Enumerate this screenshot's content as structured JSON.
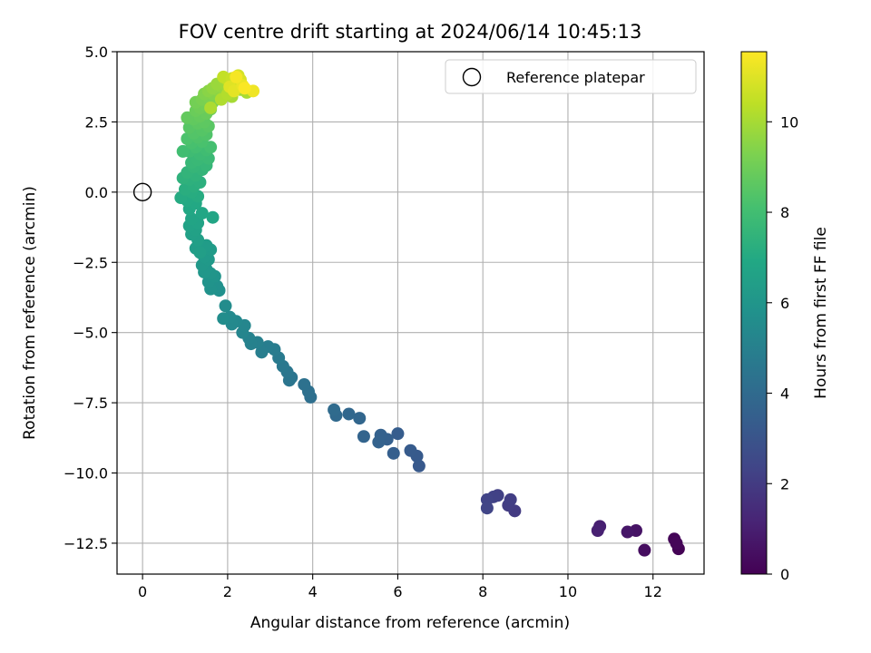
{
  "chart_data": {
    "type": "scatter",
    "title": "FOV centre drift starting at 2024/06/14 10:45:13",
    "xlabel": "Angular distance from reference (arcmin)",
    "ylabel": "Rotation from reference (arcmin)",
    "xlim": [
      -0.6,
      13.2
    ],
    "ylim": [
      -13.6,
      5.0
    ],
    "xticks": [
      0,
      2,
      4,
      6,
      8,
      10,
      12
    ],
    "yticks": [
      5.0,
      2.5,
      0.0,
      -2.5,
      -5.0,
      -7.5,
      -10.0,
      -12.5
    ],
    "xtick_labels": [
      "0",
      "2",
      "4",
      "6",
      "8",
      "10",
      "12"
    ],
    "ytick_labels": [
      "5.0",
      "2.5",
      "0.0",
      "−2.5",
      "−5.0",
      "−7.5",
      "−10.0",
      "−12.5"
    ],
    "grid": true,
    "legend": {
      "position": "top-right",
      "entries": [
        "Reference platepar"
      ]
    },
    "reference_point": {
      "x": 0,
      "y": 0
    },
    "colorbar": {
      "label": "Hours from first FF file",
      "colormap": "viridis",
      "range": [
        0,
        11.55
      ],
      "ticks": [
        0,
        2,
        4,
        6,
        8,
        10
      ],
      "tick_labels": [
        "0",
        "2",
        "4",
        "6",
        "8",
        "10"
      ]
    },
    "series": [
      {
        "points": [
          {
            "x": 12.6,
            "y": -12.7,
            "t": 0.05
          },
          {
            "x": 12.5,
            "y": -12.35,
            "t": 0.1
          },
          {
            "x": 12.55,
            "y": -12.5,
            "t": 0.15
          },
          {
            "x": 11.8,
            "y": -12.75,
            "t": 0.4
          },
          {
            "x": 11.6,
            "y": -12.05,
            "t": 0.6
          },
          {
            "x": 11.4,
            "y": -12.1,
            "t": 0.7
          },
          {
            "x": 10.75,
            "y": -11.9,
            "t": 1.0
          },
          {
            "x": 10.7,
            "y": -12.05,
            "t": 1.05
          },
          {
            "x": 8.75,
            "y": -11.35,
            "t": 2.0
          },
          {
            "x": 8.6,
            "y": -11.15,
            "t": 2.05
          },
          {
            "x": 8.65,
            "y": -10.95,
            "t": 2.1
          },
          {
            "x": 8.35,
            "y": -10.8,
            "t": 2.2
          },
          {
            "x": 8.25,
            "y": -10.85,
            "t": 2.25
          },
          {
            "x": 8.1,
            "y": -10.95,
            "t": 2.3
          },
          {
            "x": 8.1,
            "y": -11.25,
            "t": 2.35
          },
          {
            "x": 6.5,
            "y": -9.75,
            "t": 3.2
          },
          {
            "x": 6.45,
            "y": -9.4,
            "t": 3.25
          },
          {
            "x": 6.3,
            "y": -9.2,
            "t": 3.3
          },
          {
            "x": 6.0,
            "y": -8.6,
            "t": 3.4
          },
          {
            "x": 5.9,
            "y": -9.3,
            "t": 3.45
          },
          {
            "x": 5.75,
            "y": -8.8,
            "t": 3.5
          },
          {
            "x": 5.6,
            "y": -8.65,
            "t": 3.55
          },
          {
            "x": 5.55,
            "y": -8.9,
            "t": 3.6
          },
          {
            "x": 5.2,
            "y": -8.7,
            "t": 3.7
          },
          {
            "x": 5.1,
            "y": -8.05,
            "t": 3.8
          },
          {
            "x": 4.85,
            "y": -7.9,
            "t": 3.85
          },
          {
            "x": 4.55,
            "y": -7.95,
            "t": 3.95
          },
          {
            "x": 4.5,
            "y": -7.75,
            "t": 4.0
          },
          {
            "x": 3.95,
            "y": -7.3,
            "t": 4.2
          },
          {
            "x": 3.9,
            "y": -7.1,
            "t": 4.25
          },
          {
            "x": 3.8,
            "y": -6.85,
            "t": 4.3
          },
          {
            "x": 3.5,
            "y": -6.6,
            "t": 4.45
          },
          {
            "x": 3.45,
            "y": -6.7,
            "t": 4.5
          },
          {
            "x": 3.4,
            "y": -6.4,
            "t": 4.55
          },
          {
            "x": 3.3,
            "y": -6.2,
            "t": 4.6
          },
          {
            "x": 3.2,
            "y": -5.9,
            "t": 4.7
          },
          {
            "x": 3.1,
            "y": -5.6,
            "t": 4.8
          },
          {
            "x": 2.95,
            "y": -5.5,
            "t": 4.85
          },
          {
            "x": 2.8,
            "y": -5.7,
            "t": 4.9
          },
          {
            "x": 2.7,
            "y": -5.35,
            "t": 5.0
          },
          {
            "x": 2.55,
            "y": -5.4,
            "t": 5.05
          },
          {
            "x": 2.5,
            "y": -5.2,
            "t": 5.1
          },
          {
            "x": 2.35,
            "y": -5.0,
            "t": 5.2
          },
          {
            "x": 2.4,
            "y": -4.75,
            "t": 5.25
          },
          {
            "x": 2.2,
            "y": -4.6,
            "t": 5.35
          },
          {
            "x": 2.1,
            "y": -4.7,
            "t": 5.4
          },
          {
            "x": 2.05,
            "y": -4.45,
            "t": 5.45
          },
          {
            "x": 1.95,
            "y": -4.05,
            "t": 5.55
          },
          {
            "x": 1.9,
            "y": -4.5,
            "t": 5.6
          },
          {
            "x": 1.8,
            "y": -3.5,
            "t": 5.75
          },
          {
            "x": 1.75,
            "y": -3.35,
            "t": 5.8
          },
          {
            "x": 1.6,
            "y": -3.45,
            "t": 5.85
          },
          {
            "x": 1.55,
            "y": -3.2,
            "t": 5.9
          },
          {
            "x": 1.7,
            "y": -3.0,
            "t": 5.95
          },
          {
            "x": 1.6,
            "y": -2.9,
            "t": 6.0
          },
          {
            "x": 1.5,
            "y": -2.75,
            "t": 6.05
          },
          {
            "x": 1.45,
            "y": -2.85,
            "t": 6.1
          },
          {
            "x": 1.4,
            "y": -2.6,
            "t": 6.15
          },
          {
            "x": 1.55,
            "y": -2.4,
            "t": 6.2
          },
          {
            "x": 1.45,
            "y": -2.3,
            "t": 6.25
          },
          {
            "x": 1.6,
            "y": -2.05,
            "t": 6.3
          },
          {
            "x": 1.5,
            "y": -1.9,
            "t": 6.35
          },
          {
            "x": 1.25,
            "y": -2.0,
            "t": 6.4
          },
          {
            "x": 1.35,
            "y": -2.15,
            "t": 6.45
          },
          {
            "x": 1.3,
            "y": -1.7,
            "t": 6.5
          },
          {
            "x": 1.15,
            "y": -1.5,
            "t": 6.55
          },
          {
            "x": 1.25,
            "y": -1.35,
            "t": 6.6
          },
          {
            "x": 1.1,
            "y": -1.2,
            "t": 6.65
          },
          {
            "x": 1.3,
            "y": -1.1,
            "t": 6.7
          },
          {
            "x": 1.15,
            "y": -0.95,
            "t": 6.75
          },
          {
            "x": 1.65,
            "y": -0.9,
            "t": 6.8
          },
          {
            "x": 1.4,
            "y": -0.75,
            "t": 6.85
          },
          {
            "x": 1.1,
            "y": -0.6,
            "t": 6.9
          },
          {
            "x": 1.25,
            "y": -0.4,
            "t": 6.95
          },
          {
            "x": 1.05,
            "y": -0.3,
            "t": 7.0
          },
          {
            "x": 0.9,
            "y": -0.2,
            "t": 7.05
          },
          {
            "x": 1.3,
            "y": -0.15,
            "t": 7.1
          },
          {
            "x": 1.15,
            "y": 0.0,
            "t": 7.15
          },
          {
            "x": 1.0,
            "y": 0.1,
            "t": 7.2
          },
          {
            "x": 1.2,
            "y": 0.2,
            "t": 7.25
          },
          {
            "x": 1.35,
            "y": 0.35,
            "t": 7.3
          },
          {
            "x": 1.1,
            "y": 0.45,
            "t": 7.35
          },
          {
            "x": 0.95,
            "y": 0.5,
            "t": 7.4
          },
          {
            "x": 1.25,
            "y": 0.6,
            "t": 7.45
          },
          {
            "x": 1.05,
            "y": 0.7,
            "t": 7.5
          },
          {
            "x": 1.4,
            "y": 0.8,
            "t": 7.55
          },
          {
            "x": 1.2,
            "y": 0.9,
            "t": 7.6
          },
          {
            "x": 1.5,
            "y": 0.95,
            "t": 7.65
          },
          {
            "x": 1.15,
            "y": 1.05,
            "t": 7.7
          },
          {
            "x": 1.3,
            "y": 1.15,
            "t": 7.75
          },
          {
            "x": 1.55,
            "y": 1.2,
            "t": 7.8
          },
          {
            "x": 1.35,
            "y": 1.35,
            "t": 7.85
          },
          {
            "x": 1.1,
            "y": 1.45,
            "t": 7.9
          },
          {
            "x": 1.5,
            "y": 1.5,
            "t": 7.95
          },
          {
            "x": 0.95,
            "y": 1.45,
            "t": 8.0
          },
          {
            "x": 1.25,
            "y": 1.6,
            "t": 8.05
          },
          {
            "x": 1.6,
            "y": 1.6,
            "t": 8.1
          },
          {
            "x": 1.15,
            "y": 1.75,
            "t": 8.15
          },
          {
            "x": 1.4,
            "y": 1.8,
            "t": 8.2
          },
          {
            "x": 1.05,
            "y": 1.9,
            "t": 8.25
          },
          {
            "x": 1.3,
            "y": 1.95,
            "t": 8.3
          },
          {
            "x": 1.5,
            "y": 2.05,
            "t": 8.35
          },
          {
            "x": 1.2,
            "y": 2.1,
            "t": 8.4
          },
          {
            "x": 1.4,
            "y": 2.2,
            "t": 8.45
          },
          {
            "x": 1.1,
            "y": 2.3,
            "t": 8.5
          },
          {
            "x": 1.55,
            "y": 2.35,
            "t": 8.55
          },
          {
            "x": 1.3,
            "y": 2.45,
            "t": 8.6
          },
          {
            "x": 1.45,
            "y": 2.5,
            "t": 8.65
          },
          {
            "x": 1.2,
            "y": 2.6,
            "t": 8.7
          },
          {
            "x": 1.05,
            "y": 2.65,
            "t": 8.75
          },
          {
            "x": 1.35,
            "y": 2.7,
            "t": 8.8
          },
          {
            "x": 1.5,
            "y": 2.8,
            "t": 8.85
          },
          {
            "x": 1.25,
            "y": 2.9,
            "t": 8.9
          },
          {
            "x": 1.6,
            "y": 2.95,
            "t": 8.95
          },
          {
            "x": 1.35,
            "y": 3.0,
            "t": 9.0
          },
          {
            "x": 1.5,
            "y": 3.1,
            "t": 9.05
          },
          {
            "x": 1.25,
            "y": 3.2,
            "t": 9.1
          },
          {
            "x": 1.65,
            "y": 3.2,
            "t": 9.15
          },
          {
            "x": 1.4,
            "y": 3.3,
            "t": 9.2
          },
          {
            "x": 1.55,
            "y": 3.4,
            "t": 9.25
          },
          {
            "x": 1.75,
            "y": 3.35,
            "t": 9.3
          },
          {
            "x": 1.45,
            "y": 3.5,
            "t": 9.35
          },
          {
            "x": 1.65,
            "y": 3.5,
            "t": 9.4
          },
          {
            "x": 1.85,
            "y": 3.45,
            "t": 9.45
          },
          {
            "x": 1.55,
            "y": 3.6,
            "t": 9.5
          },
          {
            "x": 1.75,
            "y": 3.65,
            "t": 9.55
          },
          {
            "x": 1.95,
            "y": 3.6,
            "t": 9.6
          },
          {
            "x": 1.65,
            "y": 3.7,
            "t": 9.65
          },
          {
            "x": 1.85,
            "y": 3.75,
            "t": 9.7
          },
          {
            "x": 2.05,
            "y": 3.7,
            "t": 9.75
          },
          {
            "x": 1.75,
            "y": 3.85,
            "t": 9.8
          },
          {
            "x": 1.95,
            "y": 3.85,
            "t": 9.85
          },
          {
            "x": 2.15,
            "y": 3.8,
            "t": 9.9
          },
          {
            "x": 2.3,
            "y": 3.65,
            "t": 9.95
          },
          {
            "x": 2.1,
            "y": 3.4,
            "t": 10.0
          },
          {
            "x": 2.45,
            "y": 3.55,
            "t": 10.05
          },
          {
            "x": 1.6,
            "y": 3.0,
            "t": 10.1
          },
          {
            "x": 1.85,
            "y": 3.3,
            "t": 10.15
          },
          {
            "x": 2.0,
            "y": 3.5,
            "t": 10.2
          },
          {
            "x": 2.0,
            "y": 4.0,
            "t": 10.4
          },
          {
            "x": 1.9,
            "y": 4.1,
            "t": 10.5
          },
          {
            "x": 2.1,
            "y": 4.05,
            "t": 10.6
          },
          {
            "x": 2.2,
            "y": 3.9,
            "t": 10.7
          },
          {
            "x": 2.25,
            "y": 4.15,
            "t": 10.8
          },
          {
            "x": 2.3,
            "y": 4.0,
            "t": 10.9
          },
          {
            "x": 2.05,
            "y": 3.75,
            "t": 11.0
          },
          {
            "x": 2.15,
            "y": 3.6,
            "t": 11.1
          },
          {
            "x": 2.35,
            "y": 3.8,
            "t": 11.2
          },
          {
            "x": 2.6,
            "y": 3.6,
            "t": 11.3
          },
          {
            "x": 2.2,
            "y": 4.1,
            "t": 11.4
          },
          {
            "x": 2.4,
            "y": 3.7,
            "t": 11.5
          }
        ]
      }
    ]
  }
}
